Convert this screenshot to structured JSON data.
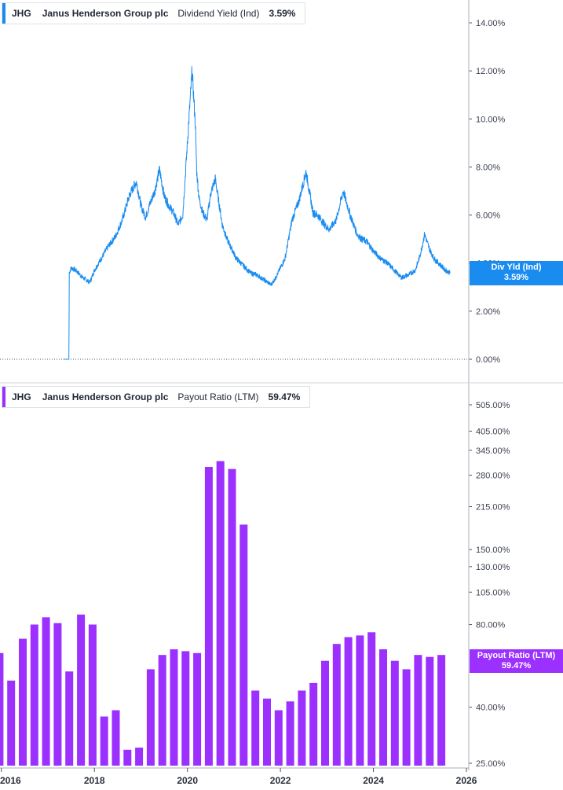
{
  "colors": {
    "yield": "#1a8cf0",
    "payout": "#9b30ff",
    "axis": "#d0d4db"
  },
  "legend_top": {
    "symbol": "JHG",
    "name": "Janus Henderson Group plc",
    "metric": "Dividend Yield (Ind)",
    "value": "3.59%"
  },
  "legend_bottom": {
    "symbol": "JHG",
    "name": "Janus Henderson Group plc",
    "metric": "Payout Ratio (LTM)",
    "value": "59.47%"
  },
  "tag_top": {
    "label": "Div Yld (Ind)",
    "value": "3.59%"
  },
  "tag_bottom": {
    "label": "Payout Ratio (LTM)",
    "value": "59.47%"
  },
  "chart_data": [
    {
      "type": "line",
      "series": [
        {
          "name": "Dividend Yield (Ind)"
        }
      ],
      "y_ticks": [
        "14.00%",
        "12.00%",
        "10.00%",
        "8.00%",
        "6.00%",
        "4.00%",
        "2.00%",
        "0.00%"
      ],
      "ylim": [
        0,
        14.5
      ],
      "x": [
        2017.45,
        2017.46,
        2017.5,
        2017.6,
        2017.75,
        2017.9,
        2018.0,
        2018.15,
        2018.3,
        2018.45,
        2018.6,
        2018.75,
        2018.9,
        2019.0,
        2019.1,
        2019.2,
        2019.3,
        2019.4,
        2019.5,
        2019.6,
        2019.7,
        2019.8,
        2019.9,
        2020.0,
        2020.1,
        2020.17,
        2020.2,
        2020.25,
        2020.33,
        2020.42,
        2020.5,
        2020.6,
        2020.75,
        2020.85,
        2020.95,
        2021.05,
        2021.2,
        2021.35,
        2021.5,
        2021.65,
        2021.8,
        2021.9,
        2022.0,
        2022.1,
        2022.25,
        2022.4,
        2022.55,
        2022.7,
        2022.8,
        2022.95,
        2023.05,
        2023.2,
        2023.35,
        2023.5,
        2023.65,
        2023.75,
        2023.85,
        2024.0,
        2024.15,
        2024.3,
        2024.45,
        2024.6,
        2024.75,
        2024.9,
        2025.0,
        2025.1,
        2025.2,
        2025.3,
        2025.4,
        2025.55,
        2025.65
      ],
      "y": [
        0.0,
        3.6,
        3.8,
        3.7,
        3.4,
        3.2,
        3.7,
        4.2,
        4.7,
        5.1,
        5.8,
        6.8,
        7.4,
        6.4,
        5.9,
        6.5,
        7.0,
        7.9,
        6.8,
        6.4,
        6.1,
        5.6,
        6.0,
        9.0,
        12.0,
        9.8,
        7.8,
        6.7,
        6.1,
        5.8,
        6.9,
        7.5,
        5.6,
        5.0,
        4.6,
        4.2,
        3.9,
        3.6,
        3.5,
        3.3,
        3.1,
        3.4,
        3.8,
        4.2,
        5.8,
        6.6,
        7.8,
        6.1,
        6.0,
        5.6,
        5.4,
        5.8,
        7.0,
        6.0,
        5.2,
        5.0,
        4.9,
        4.5,
        4.2,
        4.0,
        3.7,
        3.4,
        3.5,
        3.7,
        4.3,
        5.2,
        4.6,
        4.2,
        4.0,
        3.7,
        3.59
      ]
    },
    {
      "type": "bar",
      "series": [
        {
          "name": "Payout Ratio (LTM)"
        }
      ],
      "y_scale": "log",
      "y_ticks": [
        "505.00%",
        "405.00%",
        "345.00%",
        "280.00%",
        "215.00%",
        "150.00%",
        "130.00%",
        "105.00%",
        "80.00%",
        "40.00%",
        "25.00%"
      ],
      "y_tick_values": [
        505,
        405,
        345,
        280,
        215,
        150,
        130,
        105,
        80,
        40,
        25
      ],
      "ylim": [
        24,
        560
      ],
      "x_ticks": [
        "2016",
        "2018",
        "2020",
        "2022",
        "2024",
        "2026"
      ],
      "x_tick_values": [
        2016,
        2018,
        2020,
        2022,
        2024,
        2026
      ],
      "xlim": [
        2015.97,
        2026.05
      ],
      "x": [
        2015.96,
        2016.21,
        2016.46,
        2016.71,
        2016.96,
        2017.21,
        2017.46,
        2017.71,
        2017.96,
        2018.21,
        2018.46,
        2018.71,
        2018.96,
        2019.21,
        2019.46,
        2019.71,
        2019.96,
        2020.21,
        2020.46,
        2020.71,
        2020.96,
        2021.21,
        2021.46,
        2021.71,
        2021.96,
        2022.21,
        2022.46,
        2022.71,
        2022.96,
        2023.21,
        2023.46,
        2023.71,
        2023.96,
        2024.21,
        2024.46,
        2024.71,
        2024.96,
        2025.21,
        2025.46
      ],
      "values": [
        63,
        50,
        71,
        80,
        85,
        81,
        54,
        87,
        80,
        37,
        39,
        28,
        28.5,
        55,
        62,
        65,
        64,
        63,
        300,
        315,
        295,
        185,
        46,
        43,
        39,
        42,
        46,
        49,
        59,
        68,
        72,
        73,
        75,
        65,
        59,
        55,
        62,
        61,
        62
      ]
    }
  ]
}
